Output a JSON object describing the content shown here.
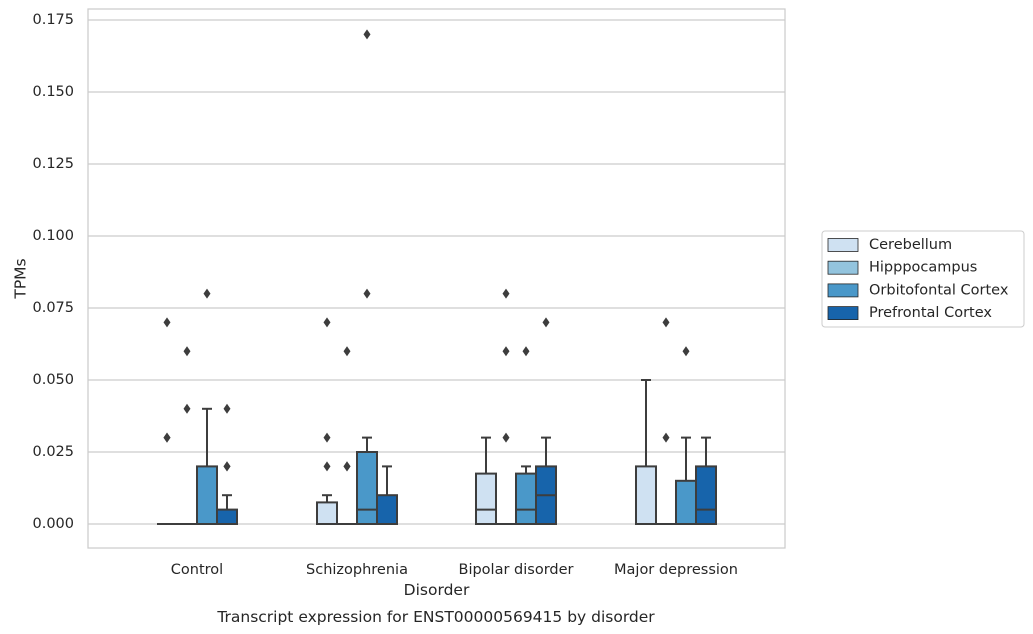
{
  "chart_data": {
    "type": "box",
    "title": "",
    "xlabel": "Disorder",
    "ylabel": "TPMs",
    "caption": "Transcript expression for ENST00000569415 by disorder",
    "ylim": [
      -0.0085,
      0.179
    ],
    "yticks": [
      0.0,
      0.025,
      0.05,
      0.075,
      0.1,
      0.125,
      0.15,
      0.175
    ],
    "ytick_labels": [
      "0.000",
      "0.025",
      "0.050",
      "0.075",
      "0.100",
      "0.125",
      "0.150",
      "0.175"
    ],
    "grid": true,
    "legend_position": "right",
    "categories": [
      "Control",
      "Schizophrenia",
      "Bipolar disorder",
      "Major depression"
    ],
    "series": [
      {
        "name": "Cerebellum",
        "color": "#cfe1f2",
        "boxes": [
          {
            "q1": 0.0,
            "median": 0.0,
            "q3": 0.0,
            "whisker_low": 0.0,
            "whisker_high": 0.0,
            "outliers": [
              0.03,
              0.03,
              0.07
            ]
          },
          {
            "q1": 0.0,
            "median": 0.0,
            "q3": 0.0075,
            "whisker_low": 0.0,
            "whisker_high": 0.01,
            "outliers": [
              0.02,
              0.03,
              0.07
            ]
          },
          {
            "q1": 0.0,
            "median": 0.005,
            "q3": 0.0175,
            "whisker_low": 0.0,
            "whisker_high": 0.03,
            "outliers": []
          },
          {
            "q1": 0.0,
            "median": 0.0,
            "q3": 0.02,
            "whisker_low": 0.0,
            "whisker_high": 0.05,
            "outliers": []
          }
        ]
      },
      {
        "name": "Hipppocampus",
        "color": "#93c4de",
        "boxes": [
          {
            "q1": 0.0,
            "median": 0.0,
            "q3": 0.0,
            "whisker_low": 0.0,
            "whisker_high": 0.0,
            "outliers": [
              0.04,
              0.06
            ]
          },
          {
            "q1": 0.0,
            "median": 0.0,
            "q3": 0.0,
            "whisker_low": 0.0,
            "whisker_high": 0.0,
            "outliers": [
              0.02,
              0.02,
              0.06
            ]
          },
          {
            "q1": 0.0,
            "median": 0.0,
            "q3": 0.0,
            "whisker_low": 0.0,
            "whisker_high": 0.0,
            "outliers": [
              0.03,
              0.06,
              0.08
            ]
          },
          {
            "q1": 0.0,
            "median": 0.0,
            "q3": 0.0,
            "whisker_low": 0.0,
            "whisker_high": 0.0,
            "outliers": [
              0.03,
              0.07
            ]
          }
        ]
      },
      {
        "name": "Orbitofontal Cortex",
        "color": "#4a98c9",
        "boxes": [
          {
            "q1": 0.0,
            "median": 0.0,
            "q3": 0.02,
            "whisker_low": 0.0,
            "whisker_high": 0.04,
            "outliers": [
              0.08
            ]
          },
          {
            "q1": 0.0,
            "median": 0.005,
            "q3": 0.025,
            "whisker_low": 0.0,
            "whisker_high": 0.03,
            "outliers": [
              0.08,
              0.17
            ]
          },
          {
            "q1": 0.0,
            "median": 0.005,
            "q3": 0.0175,
            "whisker_low": 0.0,
            "whisker_high": 0.02,
            "outliers": [
              0.06
            ]
          },
          {
            "q1": 0.0,
            "median": 0.0,
            "q3": 0.015,
            "whisker_low": 0.0,
            "whisker_high": 0.03,
            "outliers": [
              0.06
            ]
          }
        ]
      },
      {
        "name": "Prefrontal Cortex",
        "color": "#1764ab",
        "boxes": [
          {
            "q1": 0.0,
            "median": 0.0,
            "q3": 0.005,
            "whisker_low": 0.0,
            "whisker_high": 0.01,
            "outliers": [
              0.02,
              0.02,
              0.04
            ]
          },
          {
            "q1": 0.0,
            "median": 0.0,
            "q3": 0.01,
            "whisker_low": 0.0,
            "whisker_high": 0.02,
            "outliers": []
          },
          {
            "q1": 0.0,
            "median": 0.01,
            "q3": 0.02,
            "whisker_low": 0.0,
            "whisker_high": 0.03,
            "outliers": [
              0.07
            ]
          },
          {
            "q1": 0.0,
            "median": 0.005,
            "q3": 0.02,
            "whisker_low": 0.0,
            "whisker_high": 0.03,
            "outliers": []
          }
        ]
      }
    ]
  }
}
